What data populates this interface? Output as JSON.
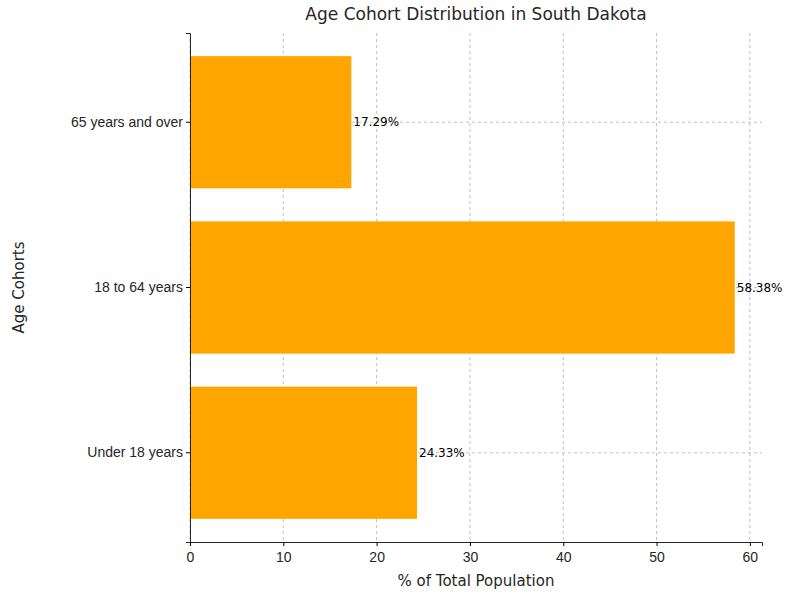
{
  "chart_data": {
    "type": "bar",
    "orientation": "horizontal",
    "title": "Age Cohort Distribution in South Dakota",
    "x_label": "% of Total Population",
    "y_label": "Age Cohorts",
    "categories": [
      "Under 18 years",
      "18 to 64 years",
      "65 years and over"
    ],
    "values": [
      24.33,
      58.38,
      17.29
    ],
    "value_labels": [
      "24.33%",
      "58.38%",
      "17.29%"
    ],
    "data_labels": true,
    "color": "#ffa500",
    "xlim": [
      0,
      61.3
    ],
    "xticks": [
      0,
      10,
      20,
      30,
      40,
      50,
      60
    ],
    "grid": true
  }
}
